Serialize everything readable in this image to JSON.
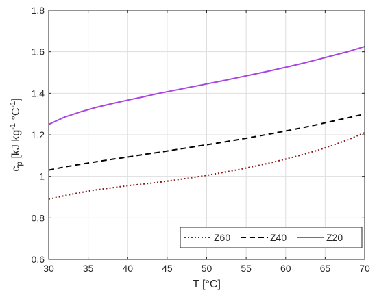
{
  "chart_data": {
    "type": "line",
    "xlabel": "T [°C]",
    "ylabel": {
      "base": "c",
      "sub": "p",
      "unit_pre": " [kJ kg",
      "unit_exp1": "-1",
      "unit_mid": " °C",
      "unit_exp2": "-1",
      "unit_post": "]"
    },
    "xlim": [
      30,
      70
    ],
    "ylim": [
      0.6,
      1.8
    ],
    "xticks": [
      30,
      35,
      40,
      45,
      50,
      55,
      60,
      65,
      70
    ],
    "yticks": [
      0.6,
      0.8,
      1.0,
      1.2,
      1.4,
      1.6,
      1.8
    ],
    "xtick_labels": [
      "30",
      "35",
      "40",
      "45",
      "50",
      "55",
      "60",
      "65",
      "70"
    ],
    "ytick_labels": [
      "0.6",
      "0.8",
      "1",
      "1.2",
      "1.4",
      "1.6",
      "1.8"
    ],
    "grid": true,
    "legend_position": "bottom-right",
    "x": [
      30,
      32,
      34,
      36,
      38,
      40,
      42,
      44,
      46,
      48,
      50,
      52,
      54,
      56,
      58,
      60,
      62,
      64,
      66,
      68,
      70
    ],
    "series": [
      {
        "name": "Z60",
        "color": "#8b1a1a",
        "style": "dotted",
        "values": [
          0.89,
          0.907,
          0.922,
          0.935,
          0.945,
          0.955,
          0.963,
          0.972,
          0.982,
          0.993,
          1.005,
          1.018,
          1.032,
          1.048,
          1.065,
          1.083,
          1.103,
          1.125,
          1.15,
          1.178,
          1.21
        ]
      },
      {
        "name": "Z40",
        "color": "#000000",
        "style": "dashed",
        "values": [
          1.03,
          1.045,
          1.058,
          1.07,
          1.082,
          1.093,
          1.105,
          1.116,
          1.128,
          1.14,
          1.152,
          1.164,
          1.177,
          1.19,
          1.204,
          1.218,
          1.233,
          1.249,
          1.266,
          1.283,
          1.3
        ]
      },
      {
        "name": "Z20",
        "color": "#a645e0",
        "style": "solid",
        "values": [
          1.25,
          1.285,
          1.31,
          1.332,
          1.35,
          1.367,
          1.383,
          1.4,
          1.415,
          1.43,
          1.445,
          1.46,
          1.476,
          1.492,
          1.508,
          1.525,
          1.543,
          1.562,
          1.582,
          1.602,
          1.625
        ]
      }
    ]
  }
}
